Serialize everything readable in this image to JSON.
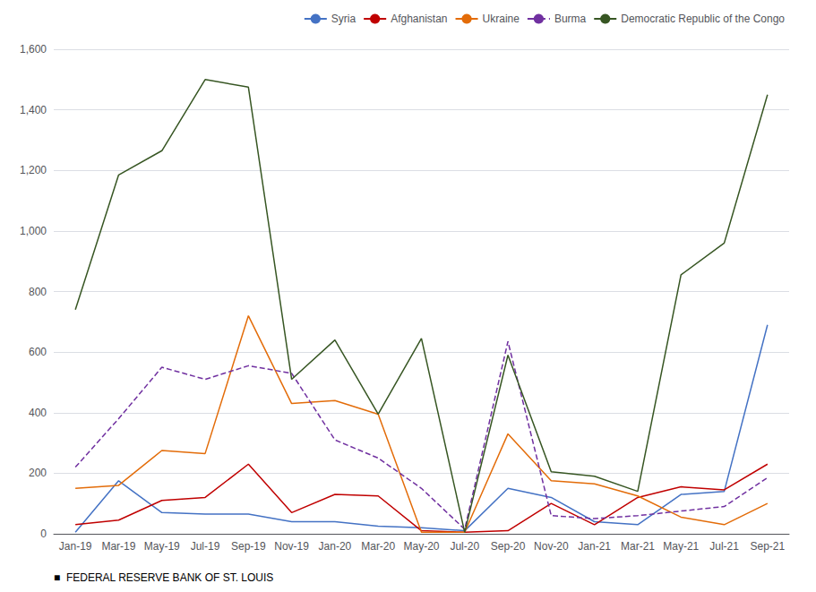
{
  "chart_data": {
    "type": "line",
    "categories": [
      "Jan-19",
      "Mar-19",
      "May-19",
      "Jul-19",
      "Sep-19",
      "Nov-19",
      "Jan-20",
      "Mar-20",
      "May-20",
      "Jul-20",
      "Sep-20",
      "Nov-20",
      "Jan-21",
      "Mar-21",
      "May-21",
      "Jul-21",
      "Sep-21"
    ],
    "series": [
      {
        "name": "Syria",
        "color": "#4472C4",
        "line_style": "solid",
        "values": [
          5,
          175,
          70,
          65,
          65,
          40,
          40,
          25,
          20,
          10,
          150,
          120,
          40,
          30,
          130,
          140,
          690
        ]
      },
      {
        "name": "Afghanistan",
        "color": "#C00000",
        "line_style": "solid",
        "values": [
          30,
          45,
          110,
          120,
          230,
          70,
          130,
          125,
          10,
          5,
          10,
          100,
          30,
          120,
          155,
          145,
          230
        ]
      },
      {
        "name": "Ukraine",
        "color": "#E36C09",
        "line_style": "solid",
        "values": [
          150,
          160,
          275,
          265,
          720,
          430,
          440,
          395,
          5,
          5,
          330,
          175,
          165,
          125,
          55,
          30,
          100
        ]
      },
      {
        "name": "Burma",
        "color": "#7030A0",
        "line_style": "dashed",
        "values": [
          220,
          380,
          550,
          510,
          555,
          530,
          310,
          250,
          150,
          15,
          635,
          60,
          50,
          60,
          75,
          90,
          185
        ]
      },
      {
        "name": "Democratic Republic of the Congo",
        "color": "#375623",
        "line_style": "solid",
        "values": [
          740,
          1185,
          1265,
          1500,
          1475,
          510,
          640,
          395,
          645,
          5,
          590,
          205,
          190,
          140,
          855,
          960,
          1450
        ]
      }
    ],
    "ylim": [
      0,
      1600
    ],
    "yticks": [
      0,
      200,
      400,
      600,
      800,
      {
        "value": 1000,
        "label": "1,000"
      },
      {
        "value": 1200,
        "label": "1,200"
      },
      {
        "value": 1400,
        "label": "1,400"
      },
      {
        "value": 1600,
        "label": "1,600"
      }
    ],
    "grid": true,
    "legend": "upper right",
    "annotations": [
      "■  FEDERAL RESERVE BANK OF ST. LOUIS"
    ]
  }
}
